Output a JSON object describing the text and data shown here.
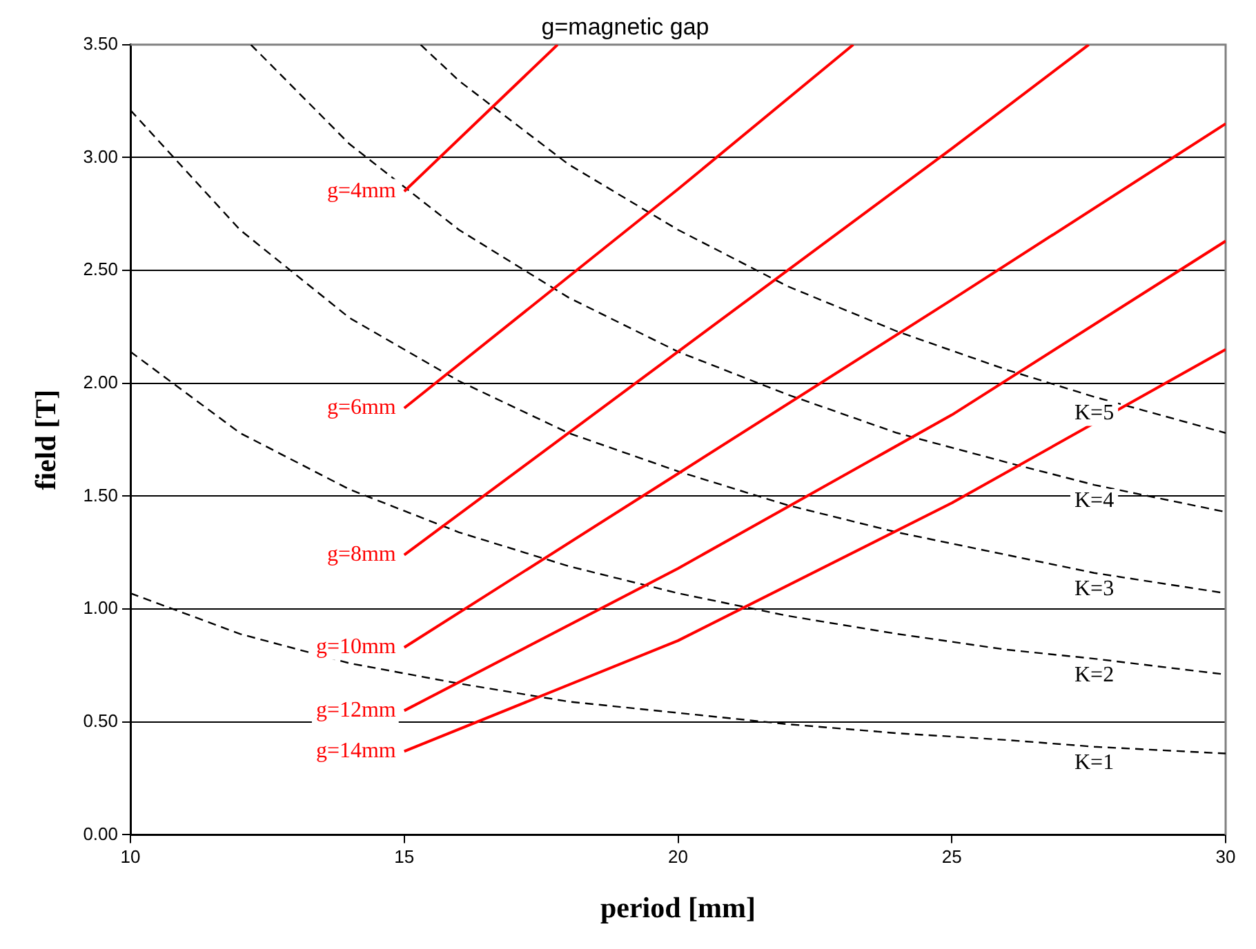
{
  "chart_data": {
    "type": "line",
    "title": "g=magnetic gap",
    "xlabel": "period [mm]",
    "ylabel": "field [T]",
    "xlim": [
      10,
      30
    ],
    "xticks": [
      10,
      15,
      20,
      25,
      30
    ],
    "ylim": [
      0,
      3.5
    ],
    "yticks": [
      {
        "value": 0,
        "label": "0.00"
      },
      {
        "value": 0.5,
        "label": "0.50"
      },
      {
        "value": 1,
        "label": "1.00"
      },
      {
        "value": 1.5,
        "label": "1.50"
      },
      {
        "value": 2,
        "label": "2.00"
      },
      {
        "value": 2.5,
        "label": "2.50"
      },
      {
        "value": 3,
        "label": "3.00"
      },
      {
        "value": 3.5,
        "label": "3.50"
      }
    ],
    "grid": "y",
    "legend": false,
    "marker": "none",
    "series": [
      {
        "name": "g=4mm",
        "color": "#ff0000",
        "line_style": "solid",
        "x": [
          15,
          17.8
        ],
        "values": [
          2.85,
          3.5
        ]
      },
      {
        "name": "g=6mm",
        "color": "#ff0000",
        "line_style": "solid",
        "x": [
          15,
          20,
          23.2
        ],
        "values": [
          1.89,
          2.86,
          3.5
        ]
      },
      {
        "name": "g=8mm",
        "color": "#ff0000",
        "line_style": "solid",
        "x": [
          15,
          20,
          25,
          27.5
        ],
        "values": [
          1.24,
          2.14,
          3.04,
          3.5
        ]
      },
      {
        "name": "g=10mm",
        "color": "#ff0000",
        "line_style": "solid",
        "x": [
          15,
          20,
          25,
          30
        ],
        "values": [
          0.83,
          1.6,
          2.37,
          3.15
        ]
      },
      {
        "name": "g=12mm",
        "color": "#ff0000",
        "line_style": "solid",
        "x": [
          15,
          20,
          25,
          30
        ],
        "values": [
          0.55,
          1.18,
          1.86,
          2.63
        ]
      },
      {
        "name": "g=14mm",
        "color": "#ff0000",
        "line_style": "solid",
        "x": [
          15,
          20,
          25,
          30
        ],
        "values": [
          0.37,
          0.86,
          1.47,
          2.15
        ]
      },
      {
        "name": "K=5",
        "color": "#000000",
        "line_style": "dashed",
        "x": [
          15.3,
          16,
          18,
          20,
          22,
          24,
          26,
          27.6,
          30
        ],
        "values": [
          3.5,
          3.34,
          2.97,
          2.68,
          2.43,
          2.23,
          2.06,
          1.94,
          1.78
        ]
      },
      {
        "name": "K=4",
        "color": "#000000",
        "line_style": "dashed",
        "x": [
          12.2,
          14,
          16,
          18,
          20,
          22,
          24,
          26,
          27.6,
          30
        ],
        "values": [
          3.5,
          3.06,
          2.68,
          2.38,
          2.14,
          1.95,
          1.78,
          1.65,
          1.55,
          1.43
        ]
      },
      {
        "name": "K=3",
        "color": "#000000",
        "line_style": "dashed",
        "x": [
          10,
          12,
          14,
          16,
          18,
          20,
          22,
          24,
          26,
          27.6,
          30
        ],
        "values": [
          3.21,
          2.68,
          2.29,
          2.01,
          1.78,
          1.61,
          1.46,
          1.34,
          1.24,
          1.16,
          1.07
        ]
      },
      {
        "name": "K=2",
        "color": "#000000",
        "line_style": "dashed",
        "x": [
          10,
          12,
          14,
          16,
          18,
          20,
          22,
          24,
          26,
          27.6,
          30
        ],
        "values": [
          2.14,
          1.78,
          1.53,
          1.34,
          1.19,
          1.07,
          0.97,
          0.89,
          0.82,
          0.78,
          0.71
        ]
      },
      {
        "name": "K=1",
        "color": "#000000",
        "line_style": "dashed",
        "x": [
          10,
          12,
          14,
          16,
          18,
          20,
          22,
          24,
          26,
          27.6,
          30
        ],
        "values": [
          1.07,
          0.89,
          0.76,
          0.67,
          0.59,
          0.54,
          0.49,
          0.45,
          0.42,
          0.39,
          0.36
        ]
      }
    ]
  }
}
